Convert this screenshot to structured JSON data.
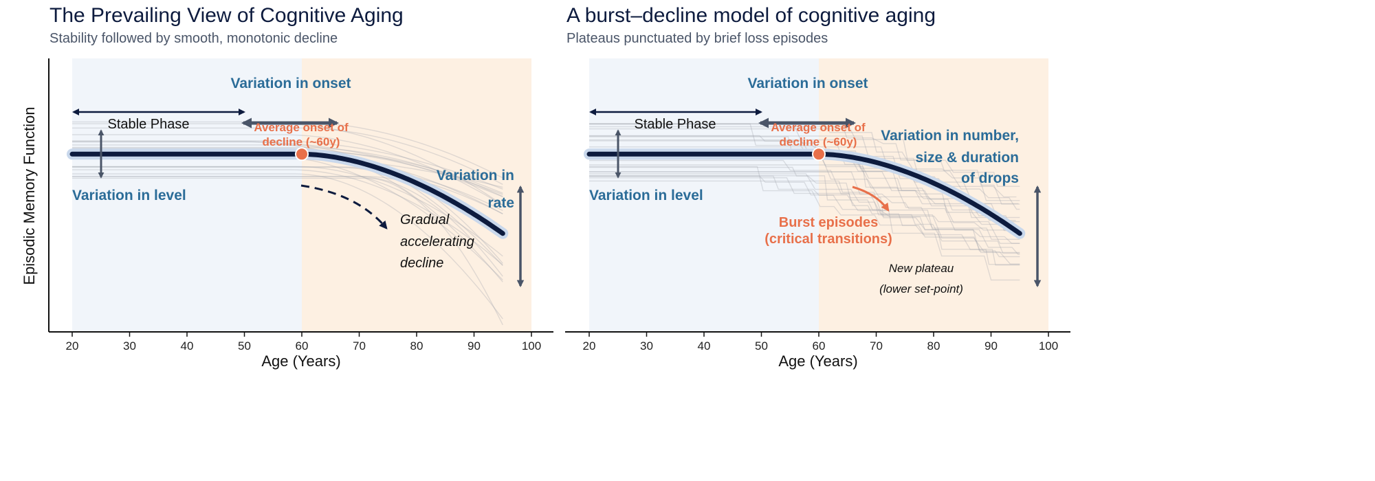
{
  "chart_data": [
    {
      "type": "line",
      "title": "The Prevailing View of Cognitive Aging",
      "subtitle": "Stability followed by smooth, monotonic decline",
      "xlabel": "Age (Years)",
      "ylabel": "Episodic Memory Function",
      "xlim": [
        20,
        100
      ],
      "x_ticks": [
        "20",
        "30",
        "40",
        "50",
        "60",
        "70",
        "80",
        "90",
        "100"
      ],
      "phases": [
        {
          "name": "stable",
          "from": 20,
          "to": 60,
          "color": "#f1f5fa"
        },
        {
          "name": "decline",
          "from": 60,
          "to": 100,
          "color": "#fdf0e2"
        }
      ],
      "mean_curve": {
        "plateau_level": 65,
        "onset_age": 60,
        "end_age": 95,
        "end_level": 36,
        "style": "smooth"
      },
      "onset_marker": {
        "age": 60,
        "level": 65
      },
      "annotations": {
        "onset": "Variation in onset",
        "stable": "Stable Phase",
        "avg_onset_1": "Average onset of",
        "avg_onset_2": "decline (~60y)",
        "level": "Variation in level",
        "rate_1": "Variation in",
        "rate_2": "rate",
        "gradual_1": "Gradual",
        "gradual_2": "accelerating",
        "gradual_3": "decline"
      }
    },
    {
      "type": "line",
      "title": "A burst–decline model of cognitive aging",
      "subtitle": "Plateaus punctuated by brief loss episodes",
      "xlabel": "Age (Years)",
      "xlim": [
        20,
        100
      ],
      "x_ticks": [
        "20",
        "30",
        "40",
        "50",
        "60",
        "70",
        "80",
        "90",
        "100"
      ],
      "phases": [
        {
          "name": "stable",
          "from": 20,
          "to": 60,
          "color": "#f1f5fa"
        },
        {
          "name": "decline",
          "from": 60,
          "to": 100,
          "color": "#fdf0e2"
        }
      ],
      "mean_curve": {
        "plateau_level": 65,
        "onset_age": 60,
        "end_age": 95,
        "end_level": 36,
        "style": "steps"
      },
      "onset_marker": {
        "age": 60,
        "level": 65
      },
      "annotations": {
        "onset": "Variation in onset",
        "stable": "Stable Phase",
        "avg_onset_1": "Average onset of",
        "avg_onset_2": "decline (~60y)",
        "level": "Variation in level",
        "drops_1": "Variation in number,",
        "drops_2": "size & duration",
        "drops_3": "of drops",
        "burst_1": "Burst episodes",
        "burst_2": "(critical transitions)",
        "plateau_1": "New plateau",
        "plateau_2": "(lower set-point)"
      }
    }
  ],
  "colors": {
    "navy": "#0d1b3e",
    "accent_blue": "#2b6c98",
    "accent_orange": "#e8704a",
    "arrow_gray": "#4a5568"
  }
}
